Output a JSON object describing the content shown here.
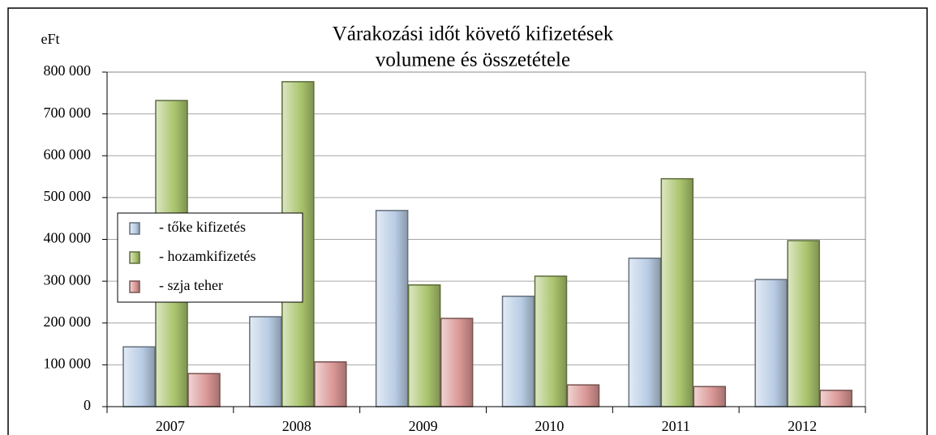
{
  "chart_data": {
    "type": "bar",
    "title": [
      "Várakozási időt követő kifizetések",
      "volumene és összetétele"
    ],
    "y_label": "eFt",
    "categories": [
      "2007",
      "2008",
      "2009",
      "2010",
      "2011",
      "2012"
    ],
    "series": [
      {
        "name": "- tőke kifizetés",
        "color": "#b8cce4",
        "values": [
          143000,
          215000,
          469000,
          264000,
          355000,
          304000
        ]
      },
      {
        "name": "- hozamkifizetés",
        "color": "#a9c46c",
        "values": [
          732000,
          777000,
          291000,
          312000,
          545000,
          397000
        ]
      },
      {
        "name": "- szja teher",
        "color": "#d99694",
        "values": [
          79000,
          107000,
          211000,
          52000,
          48000,
          39000
        ]
      }
    ],
    "ylim": [
      0,
      800000
    ],
    "yticks": [
      0,
      {
        "value": 100000,
        "label": "100 000"
      },
      {
        "value": 200000,
        "label": "200 000"
      },
      {
        "value": 300000,
        "label": "300 000"
      },
      {
        "value": 400000,
        "label": "400 000"
      },
      {
        "value": 500000,
        "label": "500 000"
      },
      {
        "value": 600000,
        "label": "600 000"
      },
      {
        "value": 700000,
        "label": "700 000"
      },
      {
        "value": 800000,
        "label": "800 000"
      }
    ],
    "grid": true
  }
}
